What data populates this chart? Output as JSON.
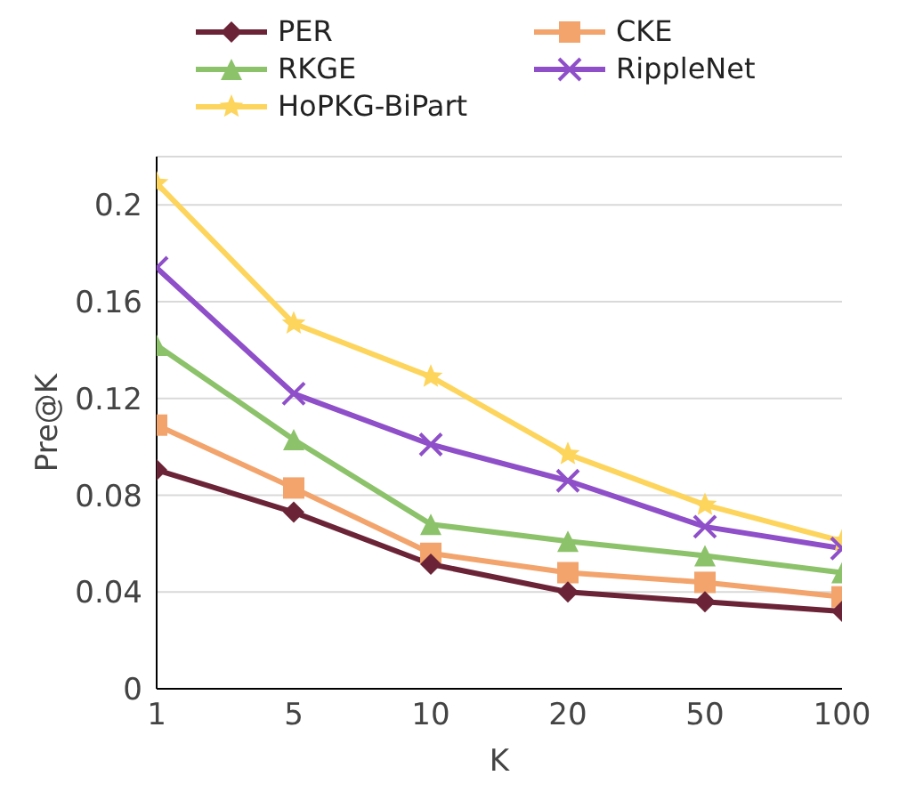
{
  "chart_data": {
    "type": "line",
    "xlabel": "K",
    "ylabel": "Pre@K",
    "categories": [
      "1",
      "5",
      "10",
      "20",
      "50",
      "100"
    ],
    "series": [
      {
        "name": "PER",
        "color": "#6b2437",
        "marker": "diamond",
        "values": [
          0.0905,
          0.073,
          0.0515,
          0.04,
          0.036,
          0.032
        ]
      },
      {
        "name": "CKE",
        "color": "#f2a46c",
        "marker": "square",
        "values": [
          0.109,
          0.083,
          0.056,
          0.048,
          0.044,
          0.038
        ]
      },
      {
        "name": "RKGE",
        "color": "#8cc26a",
        "marker": "triangle",
        "values": [
          0.142,
          0.103,
          0.068,
          0.061,
          0.055,
          0.048
        ]
      },
      {
        "name": "RippleNet",
        "color": "#8e4fc9",
        "marker": "cross",
        "values": [
          0.174,
          0.122,
          0.101,
          0.086,
          0.067,
          0.058
        ]
      },
      {
        "name": "HoPKG-BiPart",
        "color": "#fdd55c",
        "marker": "star",
        "values": [
          0.209,
          0.151,
          0.129,
          0.097,
          0.076,
          0.061
        ]
      }
    ],
    "ylim": [
      0,
      0.22
    ],
    "yticks": [
      0,
      0.04,
      0.08,
      0.12,
      0.16,
      0.2
    ],
    "grid": "y",
    "legend": "top"
  }
}
